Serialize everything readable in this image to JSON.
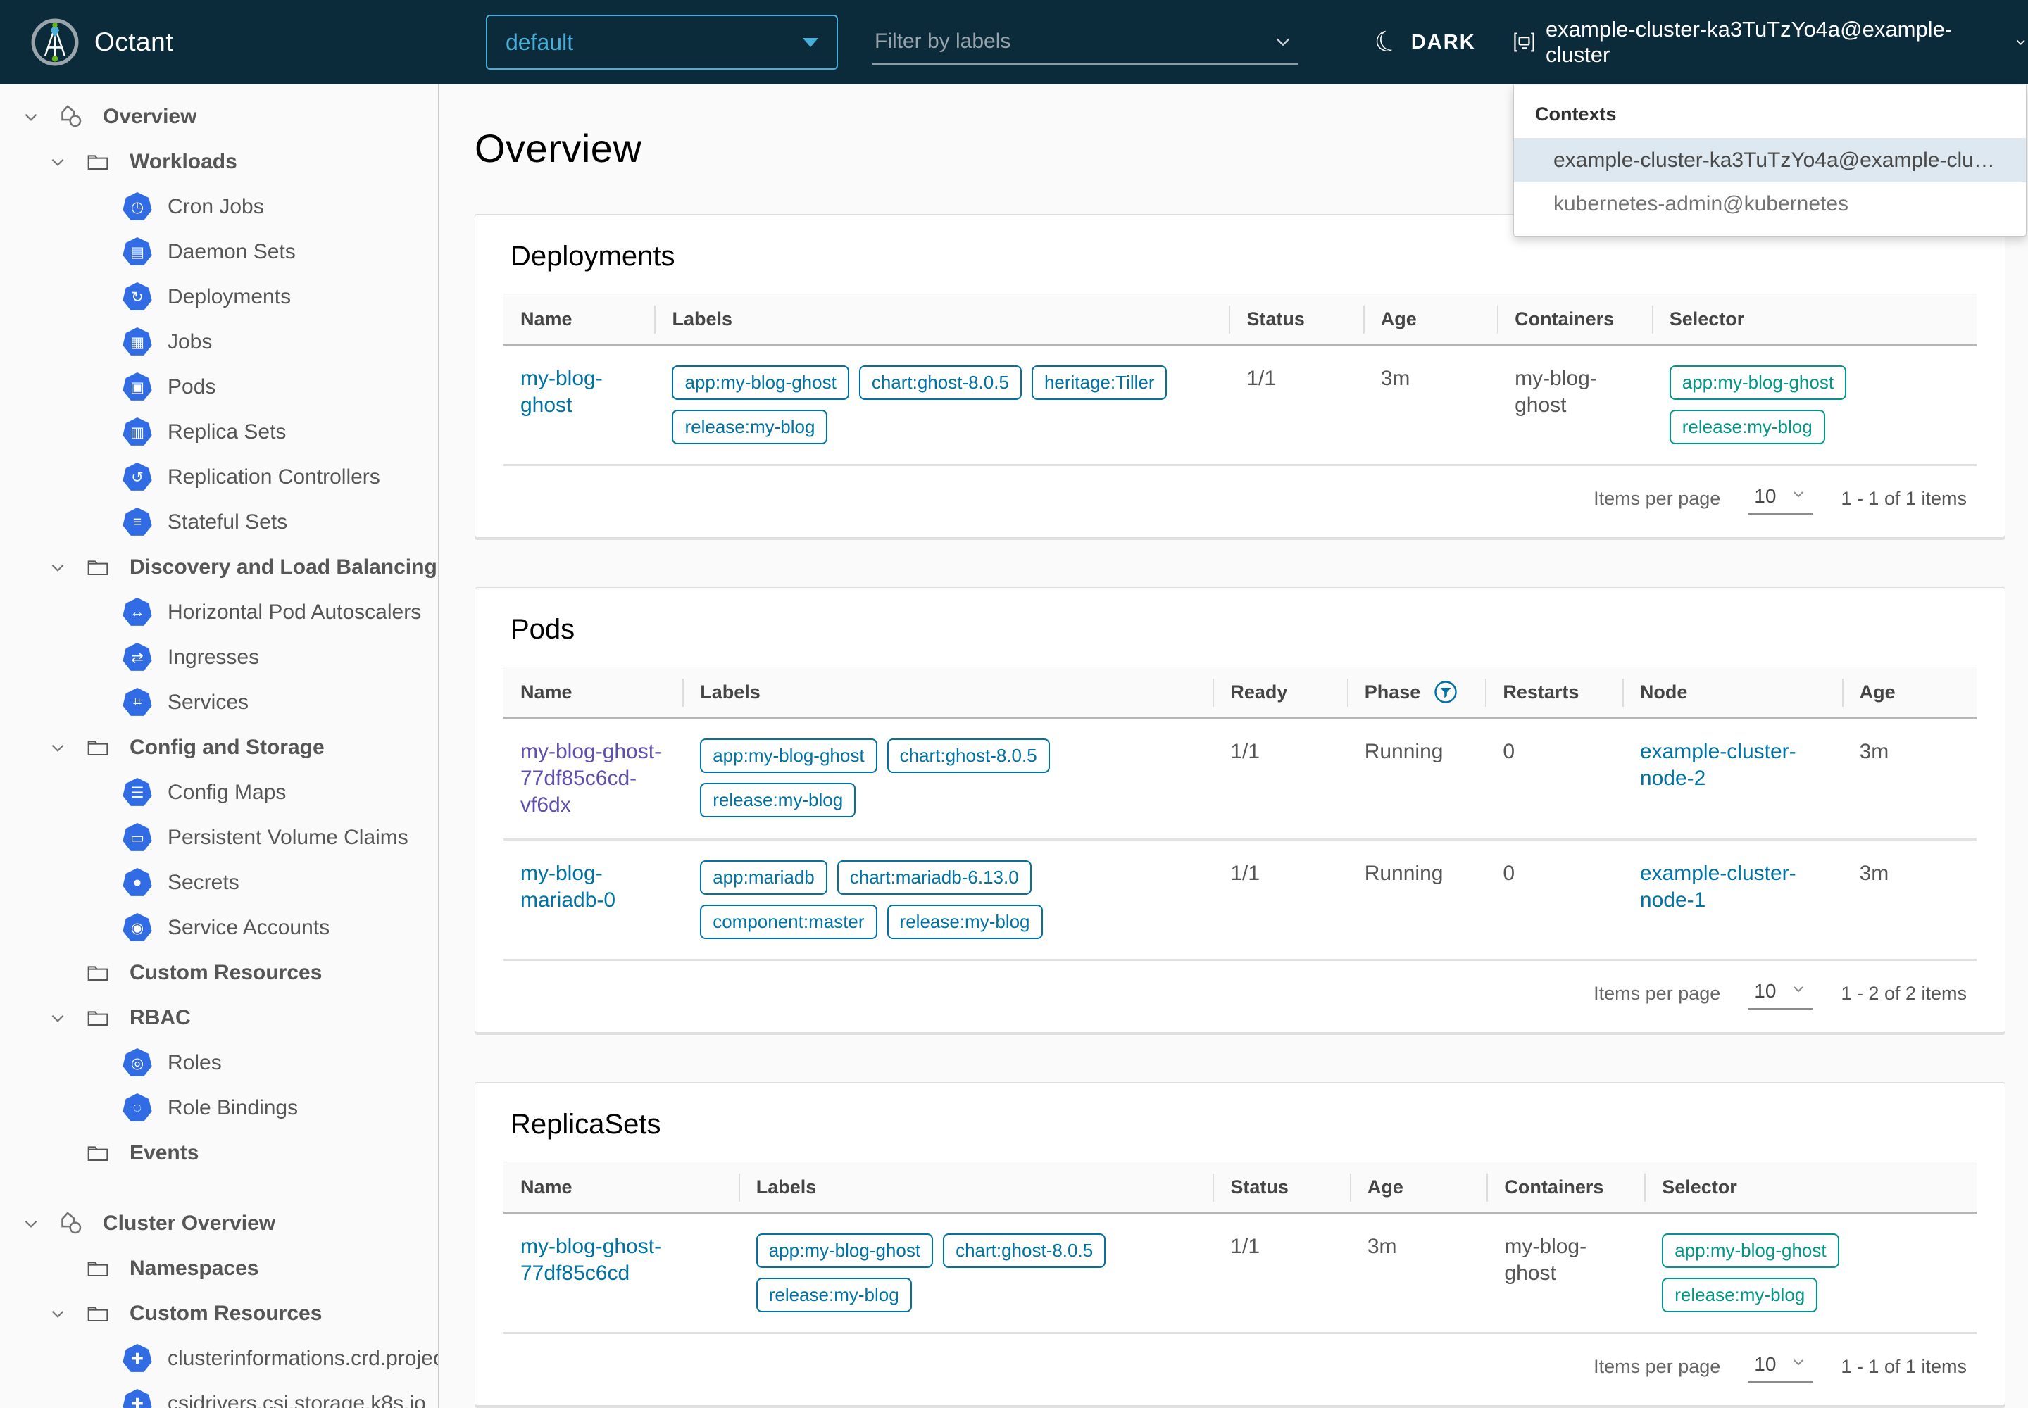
{
  "colors": {
    "header_bg": "#0b2a3a",
    "accent_blue": "#49afd9",
    "link_blue": "#0072a3",
    "visited_link": "#5e50ae",
    "selector_teal": "#009688",
    "k8s_icon_blue": "#326ce5",
    "menu_highlight": "#dee8f0"
  },
  "header": {
    "app_title": "Octant",
    "namespace_selector": {
      "value": "default"
    },
    "label_filter": {
      "placeholder": "Filter by labels"
    },
    "theme_toggle_label": "DARK",
    "context_switcher": {
      "label": "example-cluster-ka3TuTzYo4a@example-cluster"
    },
    "contexts_menu": {
      "title": "Contexts",
      "items": [
        {
          "label": "example-cluster-ka3TuTzYo4a@example-clu…",
          "selected": true
        },
        {
          "label": "kubernetes-admin@kubernetes",
          "selected": false
        }
      ]
    }
  },
  "sidebar": {
    "items": [
      {
        "label": "Overview",
        "type": "root",
        "chevron": true,
        "icon": "applications",
        "bold": true
      },
      {
        "label": "Workloads",
        "type": "group",
        "chevron": true,
        "icon": "folder",
        "bold": true
      },
      {
        "label": "Cron Jobs",
        "type": "leaf",
        "icon": "cron-jobs"
      },
      {
        "label": "Daemon Sets",
        "type": "leaf",
        "icon": "daemon-sets"
      },
      {
        "label": "Deployments",
        "type": "leaf",
        "icon": "deployments"
      },
      {
        "label": "Jobs",
        "type": "leaf",
        "icon": "jobs"
      },
      {
        "label": "Pods",
        "type": "leaf",
        "icon": "pods"
      },
      {
        "label": "Replica Sets",
        "type": "leaf",
        "icon": "replica-sets"
      },
      {
        "label": "Replication Controllers",
        "type": "leaf",
        "icon": "replication-controllers"
      },
      {
        "label": "Stateful Sets",
        "type": "leaf",
        "icon": "stateful-sets"
      },
      {
        "label": "Discovery and Load Balancing",
        "type": "group",
        "chevron": true,
        "icon": "folder",
        "bold": true
      },
      {
        "label": "Horizontal Pod Autoscalers",
        "type": "leaf",
        "icon": "horizontal-pod-autoscalers"
      },
      {
        "label": "Ingresses",
        "type": "leaf",
        "icon": "ingresses"
      },
      {
        "label": "Services",
        "type": "leaf",
        "icon": "services"
      },
      {
        "label": "Config and Storage",
        "type": "group",
        "chevron": true,
        "icon": "folder",
        "bold": true
      },
      {
        "label": "Config Maps",
        "type": "leaf",
        "icon": "config-maps"
      },
      {
        "label": "Persistent Volume Claims",
        "type": "leaf",
        "icon": "persistent-volume-claims"
      },
      {
        "label": "Secrets",
        "type": "leaf",
        "icon": "secrets"
      },
      {
        "label": "Service Accounts",
        "type": "leaf",
        "icon": "service-accounts"
      },
      {
        "label": "Custom Resources",
        "type": "group",
        "chevron": false,
        "icon": "folder",
        "bold": true
      },
      {
        "label": "RBAC",
        "type": "group",
        "chevron": true,
        "icon": "folder",
        "bold": true
      },
      {
        "label": "Roles",
        "type": "leaf",
        "icon": "roles"
      },
      {
        "label": "Role Bindings",
        "type": "leaf",
        "icon": "role-bindings"
      },
      {
        "label": "Events",
        "type": "group",
        "chevron": false,
        "icon": "folder",
        "bold": true
      },
      {
        "type": "spacer"
      },
      {
        "label": "Cluster Overview",
        "type": "root",
        "chevron": true,
        "icon": "applications",
        "bold": true
      },
      {
        "label": "Namespaces",
        "type": "group",
        "chevron": false,
        "icon": "folder",
        "bold": true
      },
      {
        "label": "Custom Resources",
        "type": "group",
        "chevron": true,
        "icon": "folder",
        "bold": true
      },
      {
        "label": "clusterinformations.crd.projec",
        "type": "leaf",
        "icon": "custom-resource"
      },
      {
        "label": "csidrivers.csi.storage.k8s.io",
        "type": "leaf",
        "icon": "custom-resource"
      }
    ]
  },
  "main": {
    "page_title": "Overview",
    "pagination_label": "Items per page",
    "cards": [
      {
        "title": "Deployments",
        "columns": [
          {
            "label": "Name"
          },
          {
            "label": "Labels"
          },
          {
            "label": "Status"
          },
          {
            "label": "Age"
          },
          {
            "label": "Containers"
          },
          {
            "label": "Selector"
          }
        ],
        "rows": [
          [
            {
              "type": "link",
              "text": "my-blog-ghost"
            },
            {
              "type": "chips",
              "style": "blue",
              "items": [
                "app:my-blog-ghost",
                "chart:ghost-8.0.5",
                "heritage:Tiller",
                "release:my-blog"
              ]
            },
            {
              "type": "text",
              "text": "1/1"
            },
            {
              "type": "text",
              "text": "3m"
            },
            {
              "type": "text",
              "text": "my-blog-ghost"
            },
            {
              "type": "chips",
              "style": "teal",
              "items": [
                "app:my-blog-ghost",
                "release:my-blog"
              ]
            }
          ]
        ],
        "footer": {
          "page_size": "10",
          "range": "1 - 1 of 1 items"
        }
      },
      {
        "title": "Pods",
        "columns": [
          {
            "label": "Name"
          },
          {
            "label": "Labels"
          },
          {
            "label": "Ready"
          },
          {
            "label": "Phase",
            "filter": true
          },
          {
            "label": "Restarts"
          },
          {
            "label": "Node"
          },
          {
            "label": "Age"
          }
        ],
        "rows": [
          [
            {
              "type": "link",
              "text": "my-blog-ghost-77df85c6cd-vf6dx",
              "visited": true
            },
            {
              "type": "chips",
              "style": "blue",
              "items": [
                "app:my-blog-ghost",
                "chart:ghost-8.0.5",
                "release:my-blog"
              ]
            },
            {
              "type": "text",
              "text": "1/1"
            },
            {
              "type": "text",
              "text": "Running"
            },
            {
              "type": "text",
              "text": "0"
            },
            {
              "type": "link",
              "text": "example-cluster-node-2"
            },
            {
              "type": "text",
              "text": "3m"
            }
          ],
          [
            {
              "type": "link",
              "text": "my-blog-mariadb-0"
            },
            {
              "type": "chips",
              "style": "blue",
              "items": [
                "app:mariadb",
                "chart:mariadb-6.13.0",
                "component:master",
                "release:my-blog"
              ]
            },
            {
              "type": "text",
              "text": "1/1"
            },
            {
              "type": "text",
              "text": "Running"
            },
            {
              "type": "text",
              "text": "0"
            },
            {
              "type": "link",
              "text": "example-cluster-node-1"
            },
            {
              "type": "text",
              "text": "3m"
            }
          ]
        ],
        "footer": {
          "page_size": "10",
          "range": "1 - 2 of 2 items"
        }
      },
      {
        "title": "ReplicaSets",
        "columns": [
          {
            "label": "Name"
          },
          {
            "label": "Labels"
          },
          {
            "label": "Status"
          },
          {
            "label": "Age"
          },
          {
            "label": "Containers"
          },
          {
            "label": "Selector"
          }
        ],
        "rows": [
          [
            {
              "type": "link",
              "text": "my-blog-ghost-77df85c6cd"
            },
            {
              "type": "chips",
              "style": "blue",
              "items": [
                "app:my-blog-ghost",
                "chart:ghost-8.0.5",
                "release:my-blog"
              ]
            },
            {
              "type": "text",
              "text": "1/1"
            },
            {
              "type": "text",
              "text": "3m"
            },
            {
              "type": "text",
              "text": "my-blog-ghost"
            },
            {
              "type": "chips",
              "style": "teal",
              "items": [
                "app:my-blog-ghost",
                "release:my-blog"
              ]
            }
          ]
        ],
        "footer": {
          "page_size": "10",
          "range": "1 - 1 of 1 items"
        }
      }
    ]
  }
}
